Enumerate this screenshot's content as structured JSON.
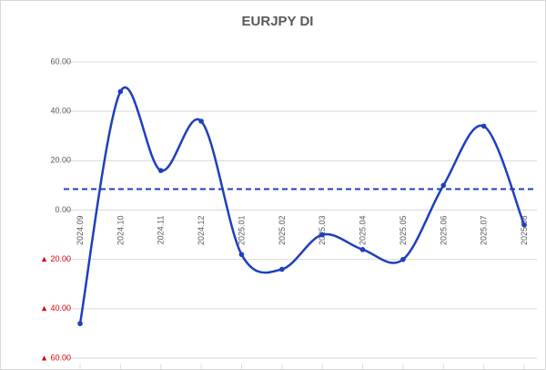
{
  "chart_data": {
    "type": "line",
    "title": "EURJPY DI",
    "categories": [
      "2024.09",
      "2024.10",
      "2024.11",
      "2024.12",
      "2025.01",
      "2025.02",
      "2025.03",
      "2025.04",
      "2025.05",
      "2025.06",
      "2025.07",
      "2025.08"
    ],
    "series": [
      {
        "name": "EURJPY DI",
        "color": "#1f3fbf",
        "values": [
          -46,
          48,
          16,
          36,
          -18,
          -24,
          -10,
          -16,
          -20,
          10,
          34,
          -6
        ]
      }
    ],
    "reference_line": {
      "value": 8.5,
      "color": "#1f3fbf",
      "style": "dashed"
    },
    "ylim": [
      -60,
      60
    ],
    "yticks": [
      {
        "value": -60,
        "label": "▲ 60.00"
      },
      {
        "value": -40,
        "label": "▲ 40.00"
      },
      {
        "value": -20,
        "label": "▲ 20.00"
      },
      {
        "value": 0,
        "label": "0.00"
      },
      {
        "value": 20,
        "label": "20.00"
      },
      {
        "value": 40,
        "label": "40.00"
      },
      {
        "value": 60,
        "label": "60.00"
      }
    ],
    "negative_tick_color": "#e00000",
    "smooth": true,
    "grid": true
  }
}
